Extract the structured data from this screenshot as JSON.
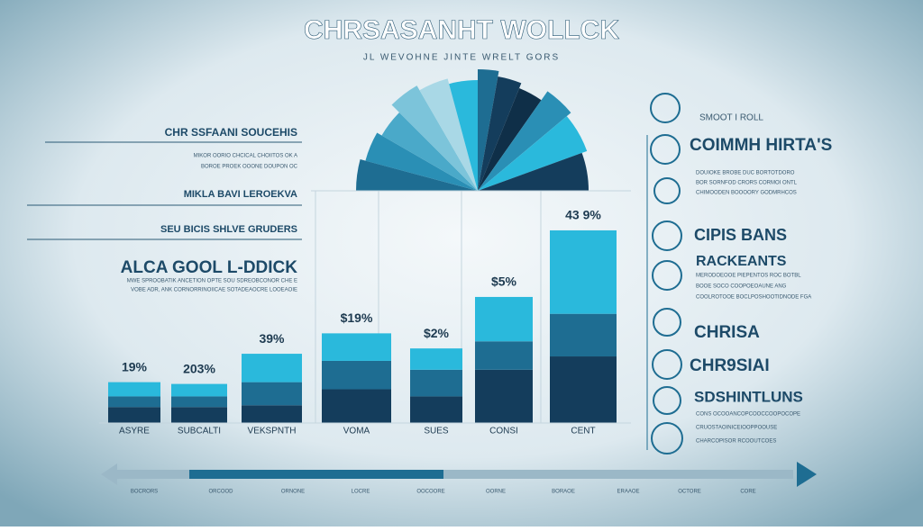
{
  "header": {
    "title": "CHRSASANHT WOLLCK",
    "subtitle": "JL WEVOHNE JINTE WRELT GORS"
  },
  "left_panel": {
    "heading_1": "CHR SSFAANI SOUCEHIS",
    "line_1": "MIKOR OORIO CHCICAL CHOIITOS OK A",
    "line_2": "BOROE PROEK OOONE DOUPON OC",
    "heading_2": "MIKLA BAVI LEROEKVA",
    "heading_3": "SEU BICIS SHLVE GRUDERS",
    "heading_4": "ALCA GOOL L-DDICK",
    "line_3": "MWE SPROOBATIK ANCETION OPTE SOU SDREOBCONOR CHE E",
    "line_4": "VOBE ADR, ANK CORNORRINOIICAE SOTADEAOCRE LOOEAOIE"
  },
  "right_panel": {
    "label_1": "SMOOT I ROLL",
    "heading_1": "COIMMH HIRTA'S",
    "line_1": "DOUIOKE BROBE DUC BORTOTDORO",
    "line_2": "BOR SORNFOD CRORS CORMOI ONTL",
    "line_3": "CHIMOODEN BOOOORY GODMRHCOS",
    "heading_2": "CIPIS BANS",
    "heading_3": "RACKEANTS",
    "line_4": "MERODOEOOE PIEPENTOS ROC BOTBL",
    "line_5": "BOOE SOCO COOPOEOAUNE ANG",
    "line_6": "COOLROTOOE BOCLPOSHOOTIDNODE FGA",
    "heading_4": "CHRISA",
    "heading_5": "CHR9SIAI",
    "heading_6": "SDSHINTLUNS",
    "line_7": "CONS OCOOANCOPCOOCCOOPOCOPE",
    "line_8": "CRUOSTAOINICEIOOPPOOUSE",
    "line_9": "CHARCOPISOR RCOOUTCOES"
  },
  "chart_data": {
    "type": "bar",
    "stacked": true,
    "categories": [
      "ASYRE",
      "SUBCALTI",
      "VEKSPNTH",
      "VOMA",
      "SUES",
      "CONSI",
      "CENT"
    ],
    "bar_labels": [
      "19%",
      "203%",
      "39%",
      "$19%",
      "$2%",
      "$5%",
      "43 9%"
    ],
    "series": [
      {
        "color": "#143d5c",
        "values": [
          18,
          18,
          20,
          38,
          30,
          60,
          75
        ]
      },
      {
        "color": "#1e6d92",
        "values": [
          12,
          12,
          26,
          32,
          30,
          32,
          48
        ]
      },
      {
        "color": "#2ab9dc",
        "values": [
          16,
          14,
          32,
          31,
          24,
          50,
          94
        ]
      }
    ],
    "ylim": [
      0,
      220
    ]
  },
  "timeline": [
    "BOCRORS",
    "ORCOOD",
    "ORNONE",
    "LOCRE",
    "OOCOORE",
    "OORNE",
    "BORAOE",
    "ERAAOE",
    "OCTORE",
    "CORE"
  ]
}
